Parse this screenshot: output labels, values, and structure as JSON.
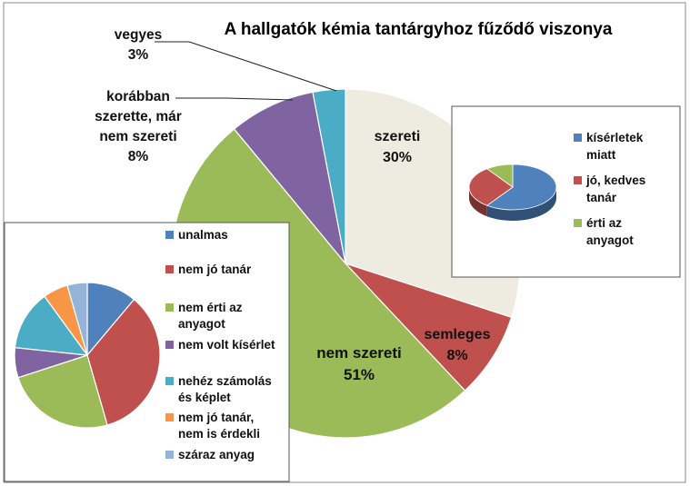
{
  "chart_data": [
    {
      "type": "pie",
      "title": "A hallgatók kémia tantárgyhoz fűződő viszonya",
      "slices": [
        {
          "label": "szereti",
          "value": 30,
          "pct_text": "30%",
          "color": "#EEECE1"
        },
        {
          "label": "semleges",
          "value": 8,
          "pct_text": "8%",
          "color": "#C0504D"
        },
        {
          "label": "nem szereti",
          "value": 51,
          "pct_text": "51%",
          "color": "#9BBB59"
        },
        {
          "label": "korábban szerette, már nem szereti",
          "value": 8,
          "pct_text": "8%",
          "color": "#8064A2"
        },
        {
          "label": "vegyes",
          "value": 3,
          "pct_text": "3%",
          "color": "#4BACC6"
        }
      ]
    },
    {
      "type": "pie",
      "title": "",
      "style": "3d",
      "slices": [
        {
          "label": "kísérletek miatt",
          "value": 60,
          "color": "#4F81BD"
        },
        {
          "label": "jó, kedves tanár",
          "value": 30,
          "color": "#C0504D"
        },
        {
          "label": "érti az anyagot",
          "value": 10,
          "color": "#9BBB59"
        }
      ],
      "legend": "right"
    },
    {
      "type": "pie",
      "title": "",
      "slices": [
        {
          "label": "unalmas",
          "value": 10,
          "color": "#4F81BD"
        },
        {
          "label": "nem jó tanár",
          "value": 31,
          "color": "#C0504D"
        },
        {
          "label": "nem érti az anyagot",
          "value": 22,
          "color": "#9BBB59"
        },
        {
          "label": "nem volt kísérlet",
          "value": 6,
          "color": "#8064A2"
        },
        {
          "label": "nehéz számolás és képlet",
          "value": 12,
          "color": "#4BACC6"
        },
        {
          "label": "nem jó tanár, nem is érdekli",
          "value": 5,
          "color": "#F79646"
        },
        {
          "label": "száraz anyag",
          "value": 4,
          "color": "#95B3D7"
        }
      ],
      "legend": "right"
    }
  ],
  "main_labels": [
    {
      "lines": [
        "szereti",
        "30%"
      ]
    },
    {
      "lines": [
        "semleges",
        "8%"
      ]
    },
    {
      "lines": [
        "nem szereti",
        "51%"
      ]
    },
    {
      "lines": [
        "korábban",
        "szerette, már",
        "nem szereti",
        "8%"
      ]
    },
    {
      "lines": [
        "vegyes",
        "3%"
      ]
    }
  ],
  "legend_likes": [
    {
      "lines": [
        "kísérletek",
        "miatt"
      ]
    },
    {
      "lines": [
        "jó, kedves",
        "tanár"
      ]
    },
    {
      "lines": [
        "érti az",
        "anyagot"
      ]
    }
  ],
  "legend_dislikes": [
    {
      "lines": [
        "unalmas"
      ]
    },
    {
      "lines": [
        "nem jó tanár"
      ]
    },
    {
      "lines": [
        "nem érti az",
        "anyagot"
      ]
    },
    {
      "lines": [
        "nem volt kísérlet"
      ]
    },
    {
      "lines": [
        "nehéz számolás",
        "és képlet"
      ]
    },
    {
      "lines": [
        "nem jó tanár,",
        "nem is érdekli"
      ]
    },
    {
      "lines": [
        "száraz anyag"
      ]
    }
  ]
}
